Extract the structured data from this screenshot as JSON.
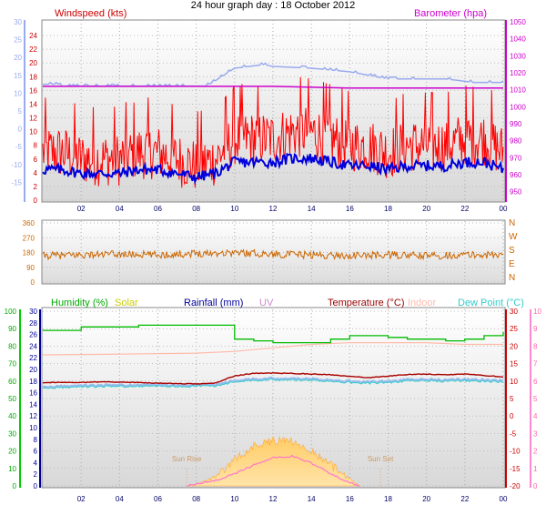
{
  "title": "24 hour graph day : 18 October 2012",
  "x_ticks": [
    "02",
    "04",
    "06",
    "08",
    "10",
    "12",
    "14",
    "16",
    "18",
    "20",
    "22",
    "00"
  ],
  "colors": {
    "wind_label": "#cc0000",
    "baro_label": "#cc00cc",
    "left_axis_blue": "#99aaee",
    "humidity": "#00aa00",
    "solar": "#cccc00",
    "rainfall": "#000099",
    "uv": "#cc88cc",
    "temperature": "#990000",
    "indoor": "#ffbbaa",
    "dewpoint": "#33cccc",
    "direction": "#cc6600"
  },
  "chart_data": [
    {
      "type": "line",
      "panel": "wind_baro",
      "labels": {
        "left": "Windspeed (kts)",
        "right": "Barometer (hpa)"
      },
      "ylim_kts": [
        0,
        26
      ],
      "ylim_hpa": [
        945,
        1050
      ],
      "ylim_blue": [
        -20,
        30
      ],
      "left_ticks": [
        "24",
        "22",
        "20",
        "18",
        "16",
        "14",
        "12",
        "10",
        "8",
        "6",
        "4",
        "2",
        "0"
      ],
      "left_ticks_blue": [
        "30",
        "25",
        "20",
        "15",
        "10",
        "5",
        "0",
        "-5",
        "-10",
        "-15"
      ],
      "right_ticks": [
        "1050",
        "1040",
        "1030",
        "1020",
        "1010",
        "1000",
        "990",
        "980",
        "970",
        "960",
        "950"
      ],
      "series": [
        {
          "name": "Windspeed (kts)",
          "x": [
            0,
            1,
            2,
            3,
            4,
            5,
            6,
            7,
            8,
            9,
            10,
            11,
            12,
            13,
            14,
            15,
            16,
            17,
            18,
            19,
            20,
            21,
            22,
            23,
            24
          ],
          "y": [
            7,
            7,
            6,
            6,
            6,
            7,
            7,
            6,
            5,
            6,
            9,
            9,
            9,
            10,
            10,
            9,
            8,
            8,
            7,
            8,
            8,
            8,
            9,
            9,
            7
          ]
        },
        {
          "name": "Barometer (hpa)",
          "x": [
            0,
            4,
            8,
            12,
            16,
            20,
            24
          ],
          "y": [
            1012,
            1012,
            1012,
            1012,
            1011,
            1011,
            1011
          ]
        }
      ]
    },
    {
      "type": "line",
      "panel": "direction",
      "left_ticks": [
        "360",
        "270",
        "180",
        "90",
        "0"
      ],
      "right_ticks": [
        "N",
        "W",
        "S",
        "E",
        "N"
      ],
      "ylim": [
        0,
        360
      ],
      "series": [
        {
          "name": "direction",
          "x": [
            0,
            2,
            4,
            6,
            8,
            10,
            12,
            14,
            16,
            18,
            20,
            22,
            24
          ],
          "y": [
            160,
            165,
            170,
            165,
            175,
            180,
            170,
            165,
            160,
            165,
            160,
            165,
            165
          ]
        }
      ]
    },
    {
      "type": "line",
      "panel": "temperature",
      "labels": {
        "humidity": "Humidity (%)",
        "solar": "Solar",
        "rainfall": "Rainfall (mm)",
        "uv": "UV",
        "temperature": "Temperature (°C)",
        "indoor": "Indoor",
        "dewpoint": "Dew Point (°C)"
      },
      "left_ticks_pct": [
        "100",
        "90",
        "80",
        "70",
        "60",
        "50",
        "40",
        "30",
        "20",
        "10",
        "0"
      ],
      "left_ticks_mm": [
        "30",
        "28",
        "26",
        "24",
        "22",
        "20",
        "18",
        "16",
        "14",
        "12",
        "10",
        "8",
        "6",
        "4",
        "2",
        "0"
      ],
      "right_ticks_c": [
        "30",
        "25",
        "20",
        "15",
        "10",
        "5",
        "0",
        "-5",
        "-10",
        "-15",
        "-20"
      ],
      "right_ticks_uv": [
        "10",
        "9",
        "8",
        "7",
        "6",
        "5",
        "4",
        "3",
        "2",
        "1",
        "0"
      ],
      "annotations": [
        "Sun Rise",
        "Sun Set"
      ],
      "series": [
        {
          "name": "Humidity (%)",
          "x": [
            0,
            1,
            2,
            3,
            4,
            5,
            6,
            7,
            8,
            9,
            10,
            11,
            12,
            13,
            14,
            15,
            16,
            17,
            18,
            19,
            20,
            21,
            22,
            23,
            24
          ],
          "y": [
            89,
            89,
            91,
            91,
            91,
            92,
            92,
            92,
            92,
            92,
            84,
            83,
            82,
            82,
            82,
            84,
            86,
            86,
            85,
            84,
            84,
            83,
            84,
            86,
            88
          ]
        },
        {
          "name": "Indoor",
          "x": [
            0,
            4,
            8,
            10,
            12,
            14,
            16,
            18,
            20,
            22,
            24
          ],
          "y": [
            17.5,
            17.7,
            18,
            18.5,
            19.5,
            20.5,
            21,
            21,
            21,
            20.5,
            20.5
          ]
        },
        {
          "name": "Temperature (°C)",
          "x": [
            0,
            1,
            2,
            3,
            4,
            5,
            6,
            7,
            8,
            9,
            10,
            11,
            12,
            13,
            14,
            15,
            16,
            17,
            18,
            19,
            20,
            21,
            22,
            23,
            24
          ],
          "y": [
            9.5,
            9.7,
            9.6,
            9.8,
            9.7,
            9.6,
            9.4,
            9.3,
            9.2,
            9.4,
            11.5,
            12.2,
            12.3,
            12.2,
            12.0,
            11.8,
            11.3,
            11.0,
            11.4,
            11.9,
            12.0,
            11.8,
            12.0,
            11.6,
            11.2
          ]
        },
        {
          "name": "Dew Point (°C)",
          "x": [
            0,
            1,
            2,
            3,
            4,
            5,
            6,
            7,
            8,
            9,
            10,
            11,
            12,
            13,
            14,
            15,
            16,
            17,
            18,
            19,
            20,
            21,
            22,
            23,
            24
          ],
          "y": [
            8.4,
            8.6,
            8.8,
            8.8,
            8.9,
            8.9,
            8.9,
            8.9,
            8.9,
            9.0,
            10.3,
            10.6,
            10.8,
            10.7,
            10.7,
            10.4,
            10.0,
            9.8,
            10.0,
            10.4,
            10.5,
            10.3,
            10.5,
            10.3,
            10.1
          ]
        },
        {
          "name": "Solar",
          "x": [
            7.5,
            8,
            9,
            10,
            11,
            12,
            13,
            14,
            15,
            16,
            16.5
          ],
          "y": [
            0,
            0.1,
            0.5,
            1.5,
            2.3,
            2.6,
            2.6,
            2.0,
            1.2,
            0.4,
            0
          ]
        },
        {
          "name": "UV",
          "x": [
            7.5,
            9,
            10,
            11,
            12,
            13,
            14,
            15,
            16,
            16.5
          ],
          "y": [
            0,
            0.3,
            0.7,
            1.2,
            1.6,
            1.7,
            1.3,
            0.7,
            0.2,
            0
          ]
        }
      ]
    }
  ]
}
